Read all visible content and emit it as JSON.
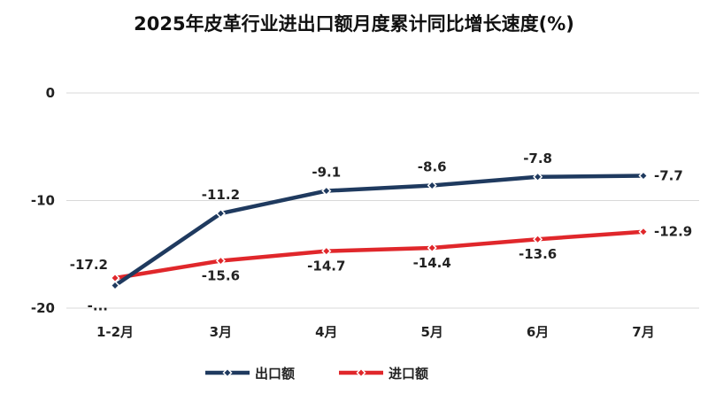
{
  "chart_data": {
    "type": "line",
    "title": "2025年皮革行业进出口额月度累计同比增长速度(%)",
    "categories": [
      "1-2月",
      "3月",
      "4月",
      "5月",
      "6月",
      "7月"
    ],
    "ylim": [
      -20,
      0
    ],
    "yticks": [
      0,
      -10,
      -20
    ],
    "grid": true,
    "legend_position": "bottom",
    "series": [
      {
        "name": "出口额",
        "color": "#1f3a5f",
        "values": [
          -17.9,
          -11.2,
          -9.1,
          -8.6,
          -7.8,
          -7.7
        ],
        "labels": [
          "-...",
          "-11.2",
          "-9.1",
          "-8.6",
          "-7.8",
          "-7.7"
        ]
      },
      {
        "name": "进口额",
        "color": "#e0272b",
        "values": [
          -17.2,
          -15.6,
          -14.7,
          -14.4,
          -13.6,
          -12.9
        ],
        "labels": [
          "-17.2",
          "-15.6",
          "-14.7",
          "-14.4",
          "-13.6",
          "-12.9"
        ]
      }
    ]
  }
}
